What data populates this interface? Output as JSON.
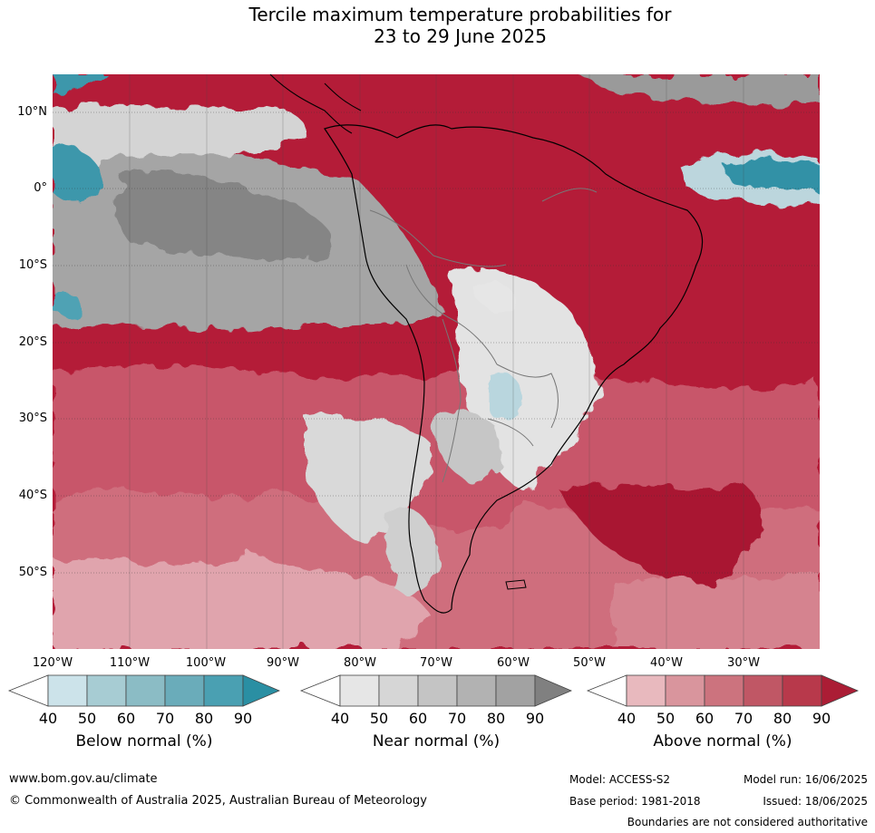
{
  "title": {
    "line1": "Tercile maximum temperature probabilities for",
    "line2": "23 to 29 June 2025"
  },
  "axes": {
    "lat_labels": [
      "10°N",
      "0°",
      "10°S",
      "20°S",
      "30°S",
      "40°S",
      "50°S"
    ],
    "lon_labels": [
      "120°W",
      "110°W",
      "100°W",
      "90°W",
      "80°W",
      "70°W",
      "60°W",
      "50°W",
      "40°W",
      "30°W"
    ]
  },
  "colorbars": [
    {
      "name": "Below normal (%)",
      "ticks": [
        "40",
        "50",
        "60",
        "70",
        "80",
        "90"
      ],
      "colors": [
        "#ffffff",
        "#cce3ea",
        "#a7ccd3",
        "#8bbcc5",
        "#6aacba",
        "#4aa0b2",
        "#2a8fa3"
      ]
    },
    {
      "name": "Near normal (%)",
      "ticks": [
        "40",
        "50",
        "60",
        "70",
        "80",
        "90"
      ],
      "colors": [
        "#ffffff",
        "#e6e6e6",
        "#d6d6d6",
        "#c4c4c4",
        "#b2b2b2",
        "#a2a2a2",
        "#808080"
      ]
    },
    {
      "name": "Above normal (%)",
      "ticks": [
        "40",
        "50",
        "60",
        "70",
        "80",
        "90"
      ],
      "colors": [
        "#ffffff",
        "#e8b9be",
        "#d9959d",
        "#cc737e",
        "#c05765",
        "#b8394b",
        "#ab1d35"
      ]
    }
  ],
  "footer": {
    "website": "www.bom.gov.au/climate",
    "copyright": "© Commonwealth of Australia 2025, Australian Bureau of Meteorology",
    "model": "Model: ACCESS-S2",
    "base_period": "Base period: 1981-2018",
    "model_run": "Model run: 16/06/2025",
    "issued": "Issued: 18/06/2025",
    "disclaimer": "Boundaries are not considered authoritative"
  }
}
